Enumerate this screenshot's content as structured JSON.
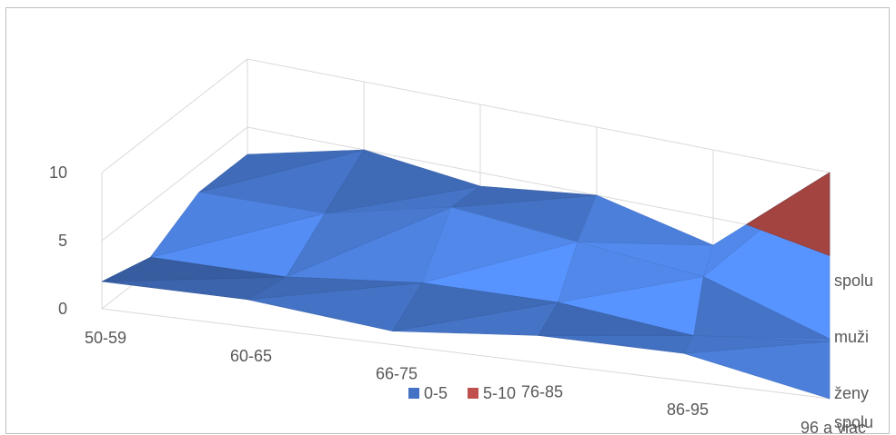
{
  "chart_data": {
    "type": "surface",
    "title": "",
    "categories": [
      "50-59",
      "60-65",
      "66-75",
      "76-85",
      "86-95",
      "96 a viac"
    ],
    "depth_categories": [
      "ženy",
      "muži",
      "spolu",
      "spolu"
    ],
    "z_ticks": [
      "0",
      "5",
      "10"
    ],
    "zlim": [
      0,
      10
    ],
    "legend": {
      "position": "bottom",
      "entries": [
        {
          "label": "0-5",
          "color": "#4472c4"
        },
        {
          "label": "5-10",
          "color": "#c0504d"
        }
      ]
    },
    "grid": true,
    "series": [
      {
        "name": "ženy",
        "values": [
          2,
          2,
          1,
          2,
          2,
          0
        ]
      },
      {
        "name": "muži",
        "values": [
          1,
          1,
          2,
          2,
          1,
          2
        ]
      },
      {
        "name": "spolu",
        "values": [
          3,
          3,
          5,
          4,
          3,
          0
        ]
      },
      {
        "name": "spolu",
        "values": [
          3,
          5,
          4,
          5,
          3,
          10
        ]
      }
    ]
  }
}
